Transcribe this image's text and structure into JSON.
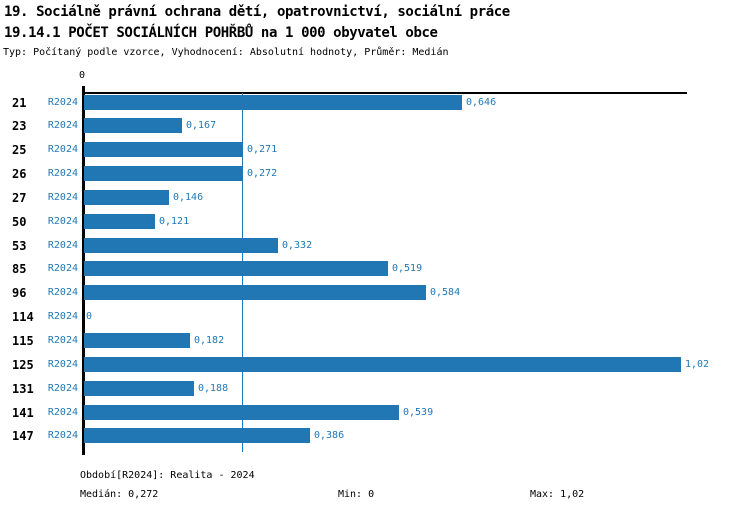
{
  "header": {
    "title_line1": "19. Sociálně právní ochrana dětí, opatrovnictví, sociální práce",
    "title_line2": "19.14.1 POČET SOCIÁLNÍCH POHŘBŮ na 1 000 obyvatel obce",
    "subtitle": "Typ: Počítaný podle vzorce, Vyhodnocení: Absolutní hodnoty, Průměr: Medián"
  },
  "chart_data": {
    "type": "bar",
    "orientation": "horizontal",
    "title": "19.14.1 POČET SOCIÁLNÍCH POHŘBŮ na 1 000 obyvatel obce",
    "categories": [
      "21",
      "23",
      "25",
      "26",
      "27",
      "50",
      "53",
      "85",
      "96",
      "114",
      "115",
      "125",
      "131",
      "141",
      "147"
    ],
    "series_label": "R2024",
    "values": [
      0.646,
      0.167,
      0.271,
      0.272,
      0.146,
      0.121,
      0.332,
      0.519,
      0.584,
      0,
      0.182,
      1.02,
      0.188,
      0.539,
      0.386
    ],
    "value_labels": [
      "0,646",
      "0,167",
      "0,271",
      "0,272",
      "0,146",
      "0,121",
      "0,332",
      "0,519",
      "0,584",
      "0",
      "0,182",
      "1,02",
      "0,188",
      "0,539",
      "0,386"
    ],
    "xlim": [
      0,
      1.03
    ],
    "x_tick_labels": [
      "0"
    ],
    "grid": "off",
    "legend": "none",
    "median_value": 0.272,
    "colors": {
      "bar": "#2077b4",
      "value_label": "#2077b4",
      "series_label": "#2077b4",
      "median_line": "#2077b4",
      "axis": "#000000"
    }
  },
  "footer": {
    "period": "Období[R2024]: Realita - 2024",
    "median": "Medián: 0,272",
    "min": "Min: 0",
    "max": "Max: 1,02"
  }
}
